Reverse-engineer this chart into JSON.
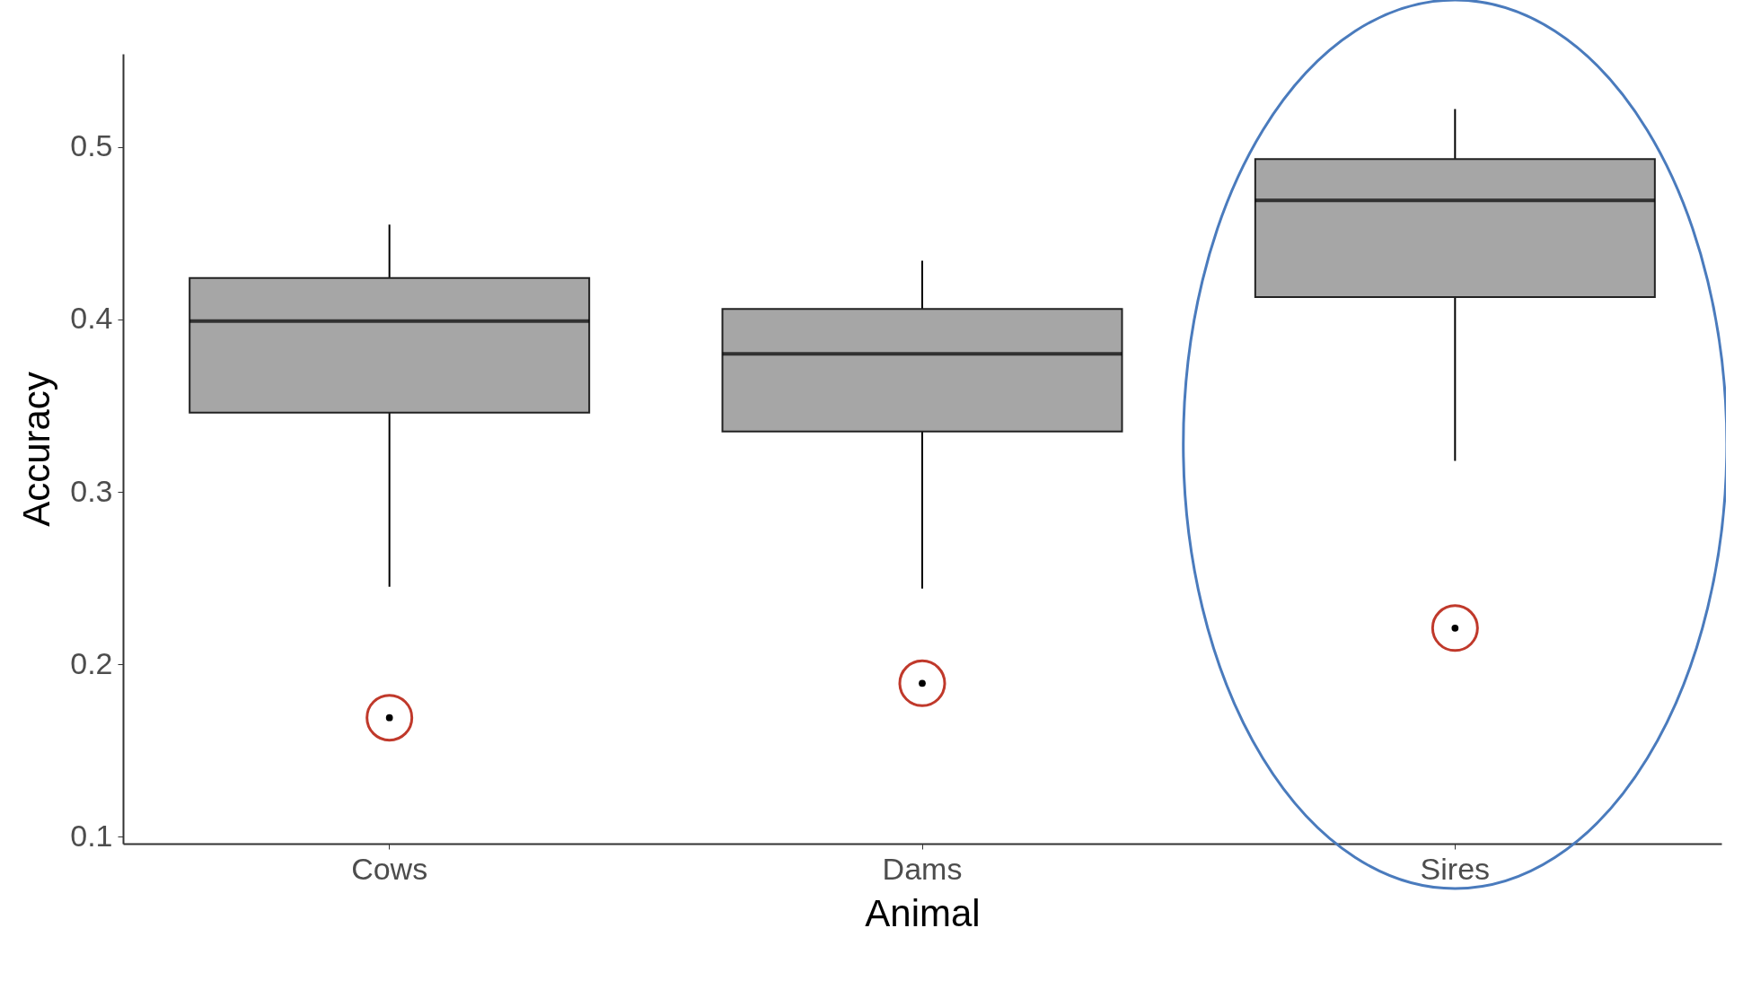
{
  "chart_data": {
    "type": "box",
    "xlabel": "Animal",
    "ylabel": "Accuracy",
    "categories": [
      "Cows",
      "Dams",
      "Sires"
    ],
    "boxes": [
      {
        "low": 0.245,
        "q1": 0.346,
        "median": 0.399,
        "q3": 0.424,
        "high": 0.455,
        "outliers": [
          0.169
        ]
      },
      {
        "low": 0.244,
        "q1": 0.335,
        "median": 0.38,
        "q3": 0.406,
        "high": 0.434,
        "outliers": [
          0.189
        ]
      },
      {
        "low": 0.318,
        "q1": 0.413,
        "median": 0.469,
        "q3": 0.493,
        "high": 0.522,
        "outliers": [
          0.221
        ]
      }
    ],
    "color": "#a6a6a6",
    "ylim": [
      0.096,
      0.554
    ],
    "yticks": [
      0.1,
      0.2,
      0.3,
      0.4,
      0.5
    ],
    "grid": false
  }
}
